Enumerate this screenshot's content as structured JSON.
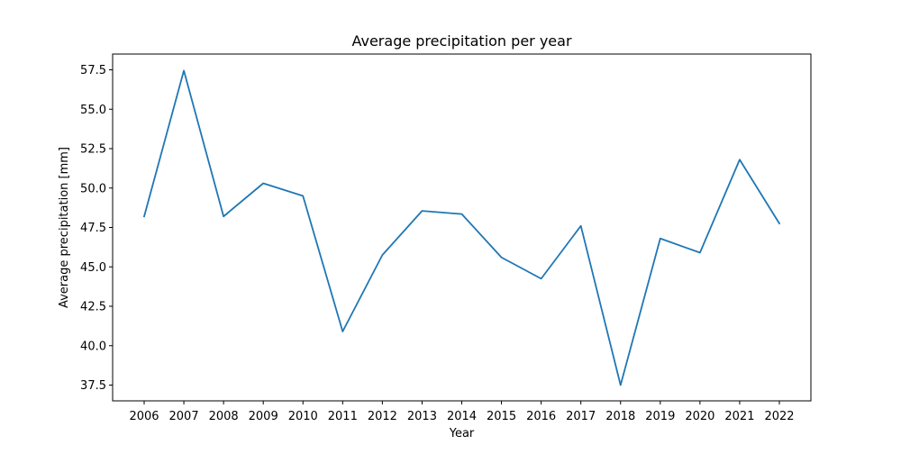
{
  "chart_data": {
    "type": "line",
    "title": "Average precipitation per year",
    "xlabel": "Year",
    "ylabel": "Average precipitation [mm]",
    "x": [
      "2006",
      "2007",
      "2008",
      "2009",
      "2010",
      "2011",
      "2012",
      "2013",
      "2014",
      "2015",
      "2016",
      "2017",
      "2018",
      "2019",
      "2020",
      "2021",
      "2022"
    ],
    "series": [
      {
        "color": "#1f77b4",
        "values": [
          48.2,
          57.45,
          48.2,
          50.3,
          49.5,
          40.9,
          45.75,
          48.55,
          48.35,
          45.6,
          44.25,
          47.6,
          37.5,
          46.8,
          45.9,
          51.8,
          47.75
        ]
      }
    ],
    "ylim": [
      36.5,
      58.5
    ],
    "yticks": [
      "37.5",
      "40.0",
      "42.5",
      "45.0",
      "47.5",
      "50.0",
      "52.5",
      "55.0",
      "57.5"
    ],
    "grid": false,
    "legend": "none"
  }
}
